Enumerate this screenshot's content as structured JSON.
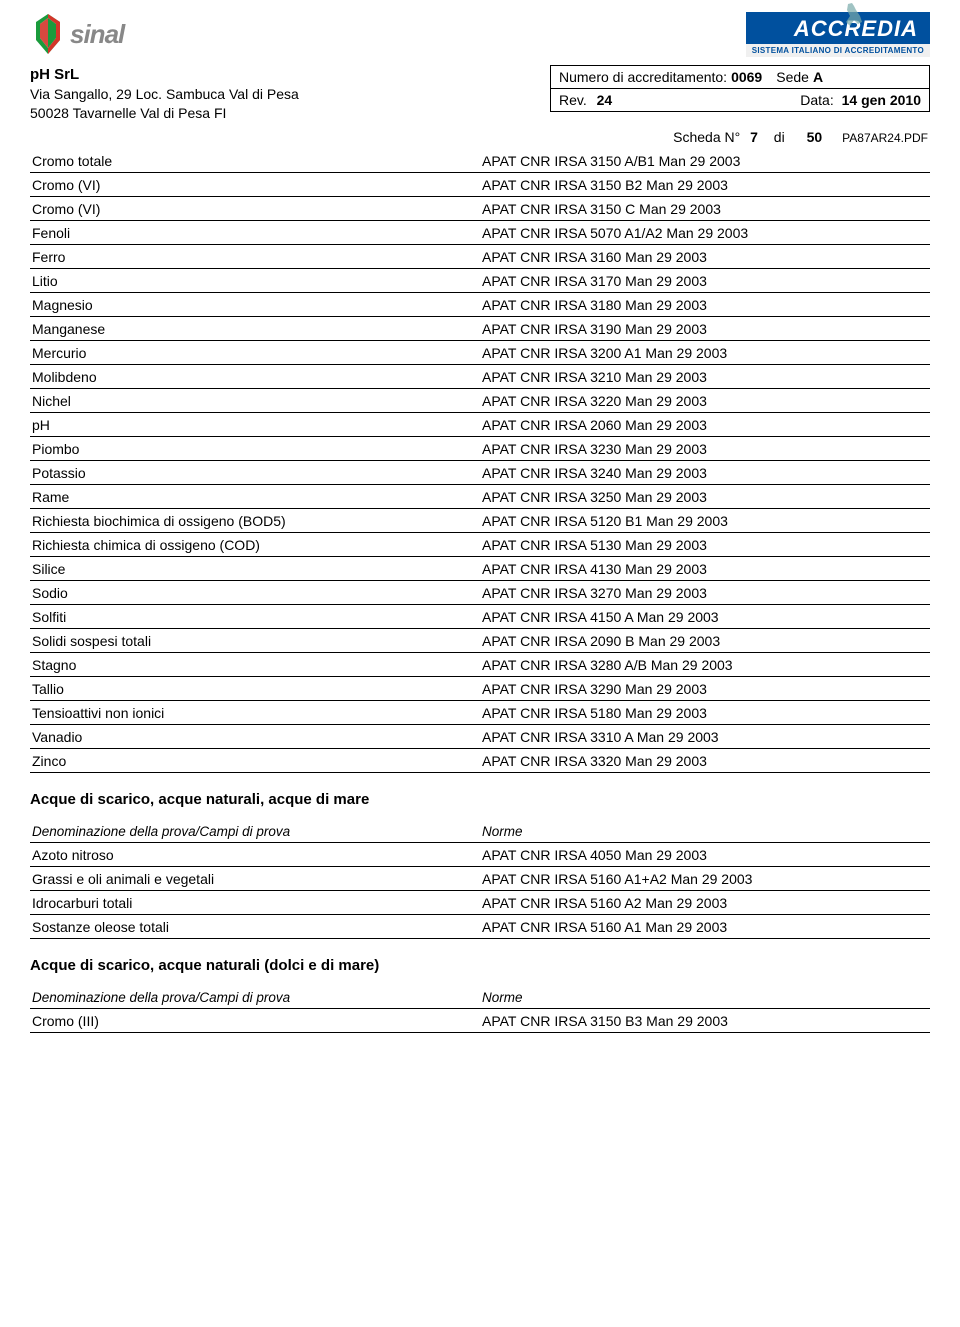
{
  "logos": {
    "sinal_text": "sinal",
    "accredia_text": "ACCREDIA",
    "accredia_sub": "SISTEMA ITALIANO DI ACCREDITAMENTO"
  },
  "company": {
    "name": "pH  SrL",
    "addr1": "Via Sangallo, 29 Loc.  Sambuca Val di Pesa",
    "addr2": "50028 Tavarnelle Val di Pesa  FI"
  },
  "accred": {
    "num_label": "Numero di accreditamento:",
    "num_value": "0069",
    "sede_label": "Sede",
    "sede_value": "A",
    "rev_label": "Rev.",
    "rev_value": "24",
    "data_label": "Data:",
    "data_value": "14 gen 2010"
  },
  "scheda": {
    "label": "Scheda N°",
    "num": "7",
    "di": "di",
    "total": "50",
    "pdf": "PA87AR24.PDF"
  },
  "columns": {
    "prova": "Denominazione della prova/Campi di prova",
    "norme": "Norme"
  },
  "main_rows": [
    [
      "Cromo totale",
      "APAT CNR IRSA 3150 A/B1 Man 29 2003"
    ],
    [
      "Cromo (VI)",
      "APAT CNR IRSA 3150 B2 Man 29 2003"
    ],
    [
      "Cromo (VI)",
      "APAT CNR IRSA 3150 C Man 29 2003"
    ],
    [
      "Fenoli",
      "APAT CNR IRSA 5070 A1/A2 Man 29 2003"
    ],
    [
      "Ferro",
      "APAT CNR IRSA 3160 Man 29 2003"
    ],
    [
      "Litio",
      "APAT CNR IRSA 3170 Man 29 2003"
    ],
    [
      "Magnesio",
      "APAT CNR IRSA 3180 Man 29 2003"
    ],
    [
      "Manganese",
      "APAT CNR IRSA 3190 Man 29 2003"
    ],
    [
      "Mercurio",
      "APAT CNR IRSA 3200 A1 Man 29 2003"
    ],
    [
      "Molibdeno",
      "APAT CNR IRSA 3210 Man 29 2003"
    ],
    [
      "Nichel",
      "APAT CNR IRSA 3220 Man 29 2003"
    ],
    [
      "pH",
      "APAT CNR IRSA 2060 Man 29 2003"
    ],
    [
      "Piombo",
      "APAT CNR IRSA 3230 Man 29 2003"
    ],
    [
      "Potassio",
      "APAT CNR IRSA 3240 Man 29 2003"
    ],
    [
      "Rame",
      "APAT CNR IRSA 3250 Man 29 2003"
    ],
    [
      "Richiesta biochimica di ossigeno (BOD5)",
      "APAT CNR IRSA 5120 B1 Man 29 2003"
    ],
    [
      "Richiesta chimica di ossigeno (COD)",
      "APAT CNR IRSA 5130 Man 29 2003"
    ],
    [
      "Silice",
      "APAT CNR IRSA 4130 Man 29 2003"
    ],
    [
      "Sodio",
      "APAT CNR IRSA 3270 Man 29 2003"
    ],
    [
      "Solfiti",
      "APAT CNR IRSA 4150 A Man 29 2003"
    ],
    [
      "Solidi sospesi totali",
      "APAT CNR IRSA 2090 B Man 29 2003"
    ],
    [
      "Stagno",
      "APAT CNR IRSA 3280 A/B Man 29 2003"
    ],
    [
      "Tallio",
      "APAT CNR IRSA 3290 Man 29 2003"
    ],
    [
      "Tensioattivi non ionici",
      "APAT CNR IRSA 5180 Man 29 2003"
    ],
    [
      "Vanadio",
      "APAT CNR IRSA 3310 A Man 29 2003"
    ],
    [
      "Zinco",
      "APAT CNR IRSA 3320 Man 29 2003"
    ]
  ],
  "section2": {
    "title": "Acque di scarico, acque naturali, acque di mare",
    "rows": [
      [
        "Azoto nitroso",
        "APAT CNR IRSA 4050 Man 29 2003"
      ],
      [
        "Grassi e oli animali e vegetali",
        "APAT CNR IRSA 5160 A1+A2 Man 29 2003"
      ],
      [
        "Idrocarburi totali",
        "APAT CNR IRSA 5160 A2 Man 29 2003"
      ],
      [
        "Sostanze oleose totali",
        "APAT CNR IRSA 5160 A1 Man 29 2003"
      ]
    ]
  },
  "section3": {
    "title": "Acque di scarico, acque naturali (dolci e di mare)",
    "rows": [
      [
        "Cromo (III)",
        "APAT CNR IRSA 3150 B3 Man 29 2003"
      ]
    ]
  },
  "colors": {
    "accredia_bg": "#00509e",
    "text": "#000000",
    "border": "#000000"
  }
}
